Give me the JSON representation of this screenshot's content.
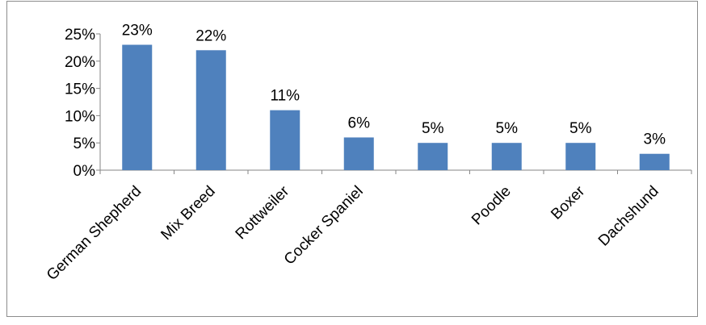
{
  "chart_data": {
    "type": "bar",
    "categories": [
      "German Shepherd",
      "Mix Breed",
      "Rottweiler",
      "Cocker Spaniel",
      "",
      "Poodle",
      "Boxer",
      "Dachshund"
    ],
    "values": [
      23,
      22,
      11,
      6,
      5,
      5,
      5,
      3
    ],
    "data_labels": [
      "23%",
      "22%",
      "11%",
      "6%",
      "5%",
      "5%",
      "5%",
      "3%"
    ],
    "y_ticks": [
      {
        "value": 0,
        "label": "0%"
      },
      {
        "value": 5,
        "label": "5%"
      },
      {
        "value": 10,
        "label": "10%"
      },
      {
        "value": 15,
        "label": "15%"
      },
      {
        "value": 20,
        "label": "20%"
      },
      {
        "value": 25,
        "label": "25%"
      }
    ],
    "ylim": [
      0,
      25
    ],
    "title": "",
    "xlabel": "",
    "ylabel": "",
    "grid": false,
    "legend": "none",
    "bar_color": "#4f81bd",
    "axis_color": "#868686"
  }
}
